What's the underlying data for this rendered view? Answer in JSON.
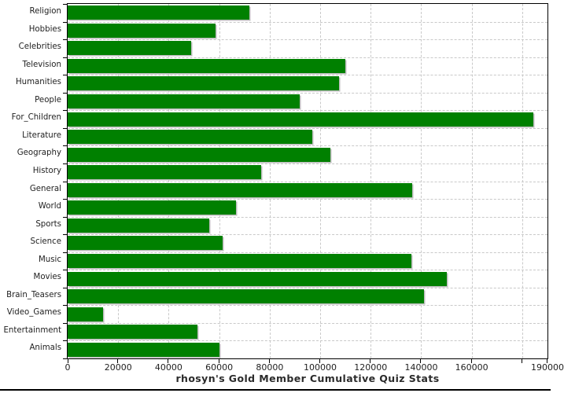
{
  "chart_data": {
    "type": "bar",
    "orientation": "horizontal",
    "title": "rhosyn's Gold Member Cumulative Quiz Stats",
    "xlabel": "",
    "ylabel": "",
    "categories": [
      "Religion",
      "Hobbies",
      "Celebrities",
      "Television",
      "Humanities",
      "People",
      "For_Children",
      "Literature",
      "Geography",
      "History",
      "General",
      "World",
      "Sports",
      "Science",
      "Music",
      "Movies",
      "Brain_Teasers",
      "Video_Games",
      "Entertainment",
      "Animals"
    ],
    "values": [
      72000,
      58500,
      49000,
      110000,
      107500,
      92000,
      184500,
      97000,
      104000,
      76500,
      136500,
      66500,
      56000,
      61500,
      136000,
      150000,
      141000,
      14000,
      51500,
      60000
    ],
    "xlim": [
      0,
      190000
    ],
    "x_ticks": [
      {
        "value": 0,
        "label": "0"
      },
      {
        "value": 20000,
        "label": "20000"
      },
      {
        "value": 40000,
        "label": "40000"
      },
      {
        "value": 60000,
        "label": "60000"
      },
      {
        "value": 80000,
        "label": "80000"
      },
      {
        "value": 100000,
        "label": "100000"
      },
      {
        "value": 120000,
        "label": "120000"
      },
      {
        "value": 140000,
        "label": "140000"
      },
      {
        "value": 160000,
        "label": "160000"
      },
      {
        "value": 180000,
        "label": ""
      },
      {
        "value": 190000,
        "label": "190000"
      }
    ],
    "grid": true,
    "legend": false,
    "bar_color": "#008000",
    "bar_shadow_color": "#bdbdbd",
    "grid_color": "#c9c9c9",
    "axis_color": "#000000",
    "text_color": "#1f1f1f"
  }
}
